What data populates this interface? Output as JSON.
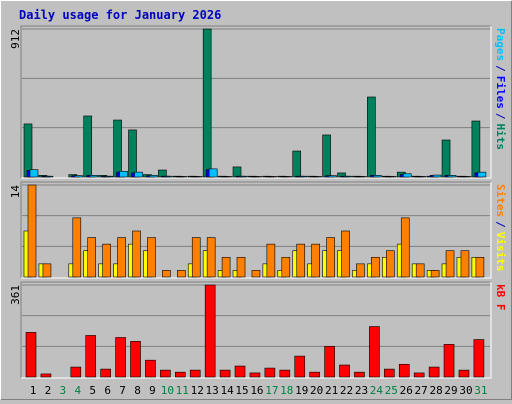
{
  "chart_data": [
    {
      "type": "bar",
      "title": "Daily usage for January 2026",
      "categories": [
        "1",
        "2",
        "3",
        "4",
        "5",
        "6",
        "7",
        "8",
        "9",
        "10",
        "11",
        "12",
        "13",
        "14",
        "15",
        "16",
        "17",
        "18",
        "19",
        "20",
        "21",
        "22",
        "23",
        "24",
        "25",
        "26",
        "27",
        "28",
        "29",
        "30",
        "31"
      ],
      "category_colors": [
        "#000000",
        "#000000",
        "#008040",
        "#008040",
        "#000000",
        "#000000",
        "#000000",
        "#000000",
        "#000000",
        "#008040",
        "#008040",
        "#000000",
        "#000000",
        "#000000",
        "#000000",
        "#000000",
        "#008040",
        "#008040",
        "#000000",
        "#000000",
        "#000000",
        "#000000",
        "#000000",
        "#008040",
        "#008040",
        "#000000",
        "#000000",
        "#000000",
        "#000000",
        "#000000",
        "#008040"
      ],
      "ylim": [
        0,
        912
      ],
      "yticks": [
        912
      ],
      "legend_separator": "/",
      "series": [
        {
          "name": "Hits",
          "color": "#00805c",
          "values": [
            327,
            10,
            0,
            15,
            376,
            10,
            351,
            290,
            15,
            43,
            5,
            5,
            912,
            5,
            62,
            5,
            5,
            5,
            160,
            5,
            259,
            25,
            5,
            493,
            5,
            30,
            5,
            5,
            228,
            5,
            345
          ]
        },
        {
          "name": "Files",
          "color": "#0000ff",
          "values": [
            40,
            5,
            0,
            8,
            10,
            5,
            30,
            25,
            8,
            5,
            3,
            3,
            45,
            3,
            5,
            3,
            3,
            3,
            5,
            3,
            8,
            5,
            3,
            10,
            3,
            15,
            3,
            10,
            10,
            3,
            25
          ]
        },
        {
          "name": "Pages",
          "color": "#00c0ff",
          "values": [
            45,
            5,
            0,
            8,
            10,
            5,
            35,
            30,
            10,
            5,
            3,
            3,
            50,
            3,
            5,
            3,
            3,
            3,
            5,
            3,
            8,
            5,
            3,
            10,
            3,
            20,
            3,
            12,
            10,
            3,
            30
          ]
        }
      ]
    },
    {
      "type": "bar",
      "ylim": [
        0,
        14
      ],
      "yticks": [
        14
      ],
      "legend_separator": "/",
      "series": [
        {
          "name": "Visits",
          "color": "#ffff00",
          "values": [
            7,
            2,
            0,
            2,
            4,
            2,
            2,
            5,
            4,
            0,
            0,
            2,
            4,
            1,
            1,
            0,
            2,
            1,
            4,
            2,
            4,
            4,
            1,
            2,
            3,
            5,
            2,
            1,
            2,
            3,
            3
          ]
        },
        {
          "name": "Sites",
          "color": "#ff8000",
          "values": [
            14,
            2,
            0,
            9,
            6,
            5,
            6,
            7,
            6,
            1,
            1,
            6,
            6,
            3,
            3,
            1,
            5,
            3,
            5,
            5,
            6,
            7,
            2,
            3,
            4,
            9,
            2,
            1,
            4,
            4,
            3
          ]
        }
      ]
    },
    {
      "type": "bar",
      "ylim": [
        0,
        361
      ],
      "yticks": [
        361
      ],
      "series": [
        {
          "name": "kB F",
          "color": "#ff0000",
          "values": [
            175,
            12,
            0,
            39,
            163,
            31,
            155,
            140,
            66,
            27,
            19,
            27,
            361,
            27,
            43,
            16,
            35,
            27,
            82,
            19,
            120,
            47,
            19,
            198,
            31,
            50,
            16,
            39,
            128,
            27,
            147
          ]
        }
      ]
    }
  ]
}
